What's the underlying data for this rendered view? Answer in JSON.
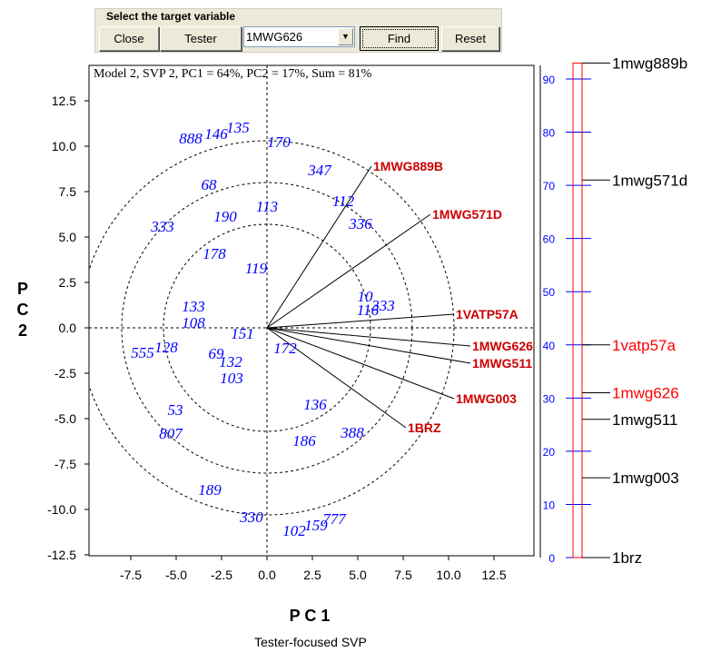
{
  "toolbar": {
    "group_title": "Select the target variable",
    "close_label": "Close",
    "tester_label": "Tester",
    "selected_variable": "1MWG626",
    "find_label": "Find",
    "reset_label": "Reset"
  },
  "plot_header": "Model 2, SVP 2, PC1 = 64%, PC2 = 17%, Sum = 81%",
  "caption": "Tester-focused SVP",
  "colors": {
    "genotype": "#0000ff",
    "vector_label": "#cc0000",
    "scale": "#0000ff",
    "highlight": "#ff0000"
  },
  "chart_data": [
    {
      "type": "scatter",
      "subtype": "biplot",
      "xlabel": "P C 1",
      "ylabel": "P C 2",
      "xlim": [
        -9.8,
        14.7
      ],
      "ylim": [
        -12.55,
        14.45
      ],
      "xticks": [
        "-7.5",
        "-5.0",
        "-2.5",
        "0.0",
        "2.5",
        "5.0",
        "7.5",
        "10.0",
        "12.5"
      ],
      "yticks": [
        "12.5",
        "10.0",
        "7.5",
        "5.0",
        "2.5",
        "0.0",
        "-2.5",
        "-5.0",
        "-7.5",
        "-10.0",
        "-12.5"
      ],
      "concentric_circle_radii": [
        5.7,
        8.0,
        10.3
      ],
      "vectors": [
        {
          "label": "1MWG889B",
          "x": 5.75,
          "y": 8.9
        },
        {
          "label": "1MWG571D",
          "x": 9.0,
          "y": 6.25
        },
        {
          "label": "1VATP57A",
          "x": 10.3,
          "y": 0.75
        },
        {
          "label": "1MWG626",
          "x": 11.2,
          "y": -1.0
        },
        {
          "label": "1MWG511",
          "x": 11.2,
          "y": -1.95
        },
        {
          "label": "1MWG003",
          "x": 10.3,
          "y": -3.9
        },
        {
          "label": "1BRZ",
          "x": 7.65,
          "y": -5.5
        }
      ],
      "points": [
        {
          "label": "888",
          "x": -4.2,
          "y": 10.45
        },
        {
          "label": "146",
          "x": -2.8,
          "y": 10.7
        },
        {
          "label": "135",
          "x": -1.6,
          "y": 11.05
        },
        {
          "label": "170",
          "x": 0.65,
          "y": 10.25
        },
        {
          "label": "347",
          "x": 2.9,
          "y": 8.7
        },
        {
          "label": "68",
          "x": -3.2,
          "y": 7.9
        },
        {
          "label": "112",
          "x": 4.2,
          "y": 7.0
        },
        {
          "label": "113",
          "x": 0.0,
          "y": 6.7
        },
        {
          "label": "190",
          "x": -2.3,
          "y": 6.15
        },
        {
          "label": "336",
          "x": 5.15,
          "y": 5.75
        },
        {
          "label": "333",
          "x": -5.75,
          "y": 5.6
        },
        {
          "label": "178",
          "x": -2.9,
          "y": 4.1
        },
        {
          "label": "119",
          "x": -0.6,
          "y": 3.3
        },
        {
          "label": "10",
          "x": 5.4,
          "y": 1.75
        },
        {
          "label": "116",
          "x": 5.55,
          "y": 1.0
        },
        {
          "label": "333",
          "x": 6.4,
          "y": 1.25
        },
        {
          "label": "133",
          "x": -4.05,
          "y": 1.2
        },
        {
          "label": "108",
          "x": -4.05,
          "y": 0.3
        },
        {
          "label": "151",
          "x": -1.35,
          "y": -0.3
        },
        {
          "label": "128",
          "x": -5.55,
          "y": -1.05
        },
        {
          "label": "555",
          "x": -6.85,
          "y": -1.35
        },
        {
          "label": "69",
          "x": -2.8,
          "y": -1.4
        },
        {
          "label": "132",
          "x": -2.0,
          "y": -1.85
        },
        {
          "label": "103",
          "x": -1.95,
          "y": -2.75
        },
        {
          "label": "172",
          "x": 1.0,
          "y": -1.1
        },
        {
          "label": "136",
          "x": 2.65,
          "y": -4.2
        },
        {
          "label": "53",
          "x": -5.05,
          "y": -4.5
        },
        {
          "label": "186",
          "x": 2.05,
          "y": -6.2
        },
        {
          "label": "388",
          "x": 4.7,
          "y": -5.75
        },
        {
          "label": "807",
          "x": -5.3,
          "y": -5.8
        },
        {
          "label": "189",
          "x": -3.15,
          "y": -8.9
        },
        {
          "label": "330",
          "x": -0.85,
          "y": -10.4
        },
        {
          "label": "102",
          "x": 1.5,
          "y": -11.15
        },
        {
          "label": "159",
          "x": 2.7,
          "y": -10.85
        },
        {
          "label": "777",
          "x": 3.7,
          "y": -10.5
        }
      ]
    },
    {
      "type": "linkage-map",
      "ylim": [
        0,
        93
      ],
      "yticks": [
        "0",
        "10",
        "20",
        "30",
        "40",
        "50",
        "60",
        "70",
        "80",
        "90"
      ],
      "markers": [
        {
          "label": "1mwg889b",
          "position": 93,
          "highlighted": false
        },
        {
          "label": "1mwg571d",
          "position": 71,
          "highlighted": false
        },
        {
          "label": "1vatp57a",
          "position": 40,
          "highlighted": true
        },
        {
          "label": "1mwg626",
          "position": 31,
          "highlighted": true
        },
        {
          "label": "1mwg511",
          "position": 26,
          "highlighted": false
        },
        {
          "label": "1mwg003",
          "position": 15,
          "highlighted": false
        },
        {
          "label": "1brz",
          "position": 0,
          "highlighted": false
        }
      ]
    }
  ]
}
